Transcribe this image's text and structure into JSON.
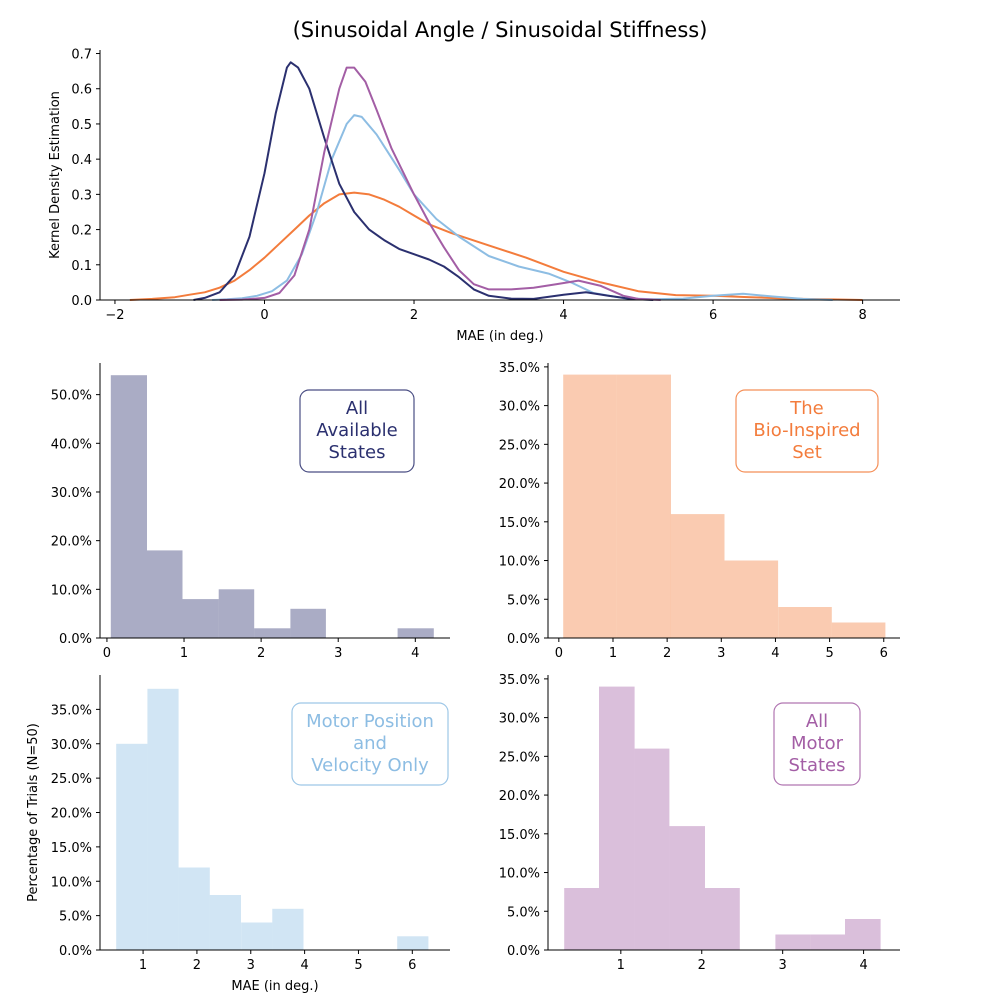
{
  "title": "(Sinusoidal Angle / Sinusoidal Stiffness)",
  "colors": {
    "all_states": "#2b306f",
    "bio_inspired": "#f37c3c",
    "motor_pos_vel": "#8dbde3",
    "all_motor": "#a35ea5"
  },
  "chart_data": [
    {
      "id": "kde",
      "type": "line",
      "title": "(Sinusoidal Angle / Sinusoidal Stiffness)",
      "xlabel": "MAE (in deg.)",
      "ylabel": "Kernel Density Estimation",
      "xlim": [
        -2.2,
        8.5
      ],
      "ylim": [
        0,
        0.71
      ],
      "xticks": [
        -2,
        0,
        2,
        4,
        6,
        8
      ],
      "yticks": [
        0.0,
        0.1,
        0.2,
        0.3,
        0.4,
        0.5,
        0.6,
        0.7
      ],
      "grid": false,
      "series": [
        {
          "color_key": "bio_inspired",
          "points": [
            [
              -1.8,
              0.0
            ],
            [
              -1.5,
              0.003
            ],
            [
              -1.2,
              0.008
            ],
            [
              -1.0,
              0.015
            ],
            [
              -0.8,
              0.022
            ],
            [
              -0.6,
              0.035
            ],
            [
              -0.4,
              0.055
            ],
            [
              -0.2,
              0.085
            ],
            [
              0.0,
              0.12
            ],
            [
              0.2,
              0.16
            ],
            [
              0.4,
              0.2
            ],
            [
              0.6,
              0.24
            ],
            [
              0.8,
              0.275
            ],
            [
              1.0,
              0.3
            ],
            [
              1.2,
              0.305
            ],
            [
              1.4,
              0.3
            ],
            [
              1.6,
              0.285
            ],
            [
              1.8,
              0.265
            ],
            [
              2.0,
              0.24
            ],
            [
              2.2,
              0.215
            ],
            [
              2.5,
              0.19
            ],
            [
              3.0,
              0.155
            ],
            [
              3.5,
              0.12
            ],
            [
              4.0,
              0.08
            ],
            [
              4.5,
              0.05
            ],
            [
              5.0,
              0.025
            ],
            [
              5.5,
              0.014
            ],
            [
              6.0,
              0.012
            ],
            [
              6.5,
              0.008
            ],
            [
              7.0,
              0.004
            ],
            [
              7.5,
              0.002
            ],
            [
              8.0,
              0.0
            ]
          ]
        },
        {
          "color_key": "motor_pos_vel",
          "points": [
            [
              -0.7,
              0.0
            ],
            [
              -0.5,
              0.002
            ],
            [
              -0.3,
              0.005
            ],
            [
              -0.1,
              0.012
            ],
            [
              0.1,
              0.025
            ],
            [
              0.3,
              0.055
            ],
            [
              0.5,
              0.13
            ],
            [
              0.7,
              0.25
            ],
            [
              0.9,
              0.4
            ],
            [
              1.1,
              0.5
            ],
            [
              1.2,
              0.525
            ],
            [
              1.3,
              0.52
            ],
            [
              1.5,
              0.47
            ],
            [
              1.8,
              0.37
            ],
            [
              2.0,
              0.3
            ],
            [
              2.3,
              0.23
            ],
            [
              2.6,
              0.18
            ],
            [
              3.0,
              0.125
            ],
            [
              3.4,
              0.095
            ],
            [
              3.8,
              0.075
            ],
            [
              4.1,
              0.05
            ],
            [
              4.4,
              0.02
            ],
            [
              4.8,
              0.005
            ],
            [
              5.2,
              0.002
            ],
            [
              5.6,
              0.004
            ],
            [
              6.0,
              0.012
            ],
            [
              6.4,
              0.018
            ],
            [
              6.8,
              0.01
            ],
            [
              7.2,
              0.003
            ],
            [
              7.6,
              0.0
            ]
          ]
        },
        {
          "color_key": "all_states",
          "points": [
            [
              -0.95,
              0.0
            ],
            [
              -0.8,
              0.006
            ],
            [
              -0.6,
              0.022
            ],
            [
              -0.4,
              0.07
            ],
            [
              -0.2,
              0.18
            ],
            [
              0.0,
              0.36
            ],
            [
              0.15,
              0.53
            ],
            [
              0.3,
              0.66
            ],
            [
              0.35,
              0.675
            ],
            [
              0.45,
              0.66
            ],
            [
              0.6,
              0.6
            ],
            [
              0.8,
              0.46
            ],
            [
              1.0,
              0.33
            ],
            [
              1.2,
              0.25
            ],
            [
              1.4,
              0.2
            ],
            [
              1.6,
              0.17
            ],
            [
              1.8,
              0.145
            ],
            [
              2.0,
              0.13
            ],
            [
              2.2,
              0.115
            ],
            [
              2.4,
              0.095
            ],
            [
              2.6,
              0.065
            ],
            [
              2.8,
              0.03
            ],
            [
              3.0,
              0.012
            ],
            [
              3.3,
              0.004
            ],
            [
              3.6,
              0.003
            ],
            [
              4.0,
              0.015
            ],
            [
              4.3,
              0.022
            ],
            [
              4.6,
              0.012
            ],
            [
              4.9,
              0.003
            ],
            [
              5.2,
              0.0
            ]
          ]
        },
        {
          "color_key": "all_motor",
          "points": [
            [
              -0.6,
              0.0
            ],
            [
              -0.3,
              0.001
            ],
            [
              0.0,
              0.006
            ],
            [
              0.2,
              0.02
            ],
            [
              0.4,
              0.07
            ],
            [
              0.6,
              0.2
            ],
            [
              0.8,
              0.42
            ],
            [
              1.0,
              0.6
            ],
            [
              1.1,
              0.66
            ],
            [
              1.2,
              0.66
            ],
            [
              1.35,
              0.62
            ],
            [
              1.5,
              0.54
            ],
            [
              1.7,
              0.43
            ],
            [
              2.0,
              0.3
            ],
            [
              2.2,
              0.22
            ],
            [
              2.4,
              0.15
            ],
            [
              2.6,
              0.085
            ],
            [
              2.8,
              0.045
            ],
            [
              3.0,
              0.03
            ],
            [
              3.3,
              0.03
            ],
            [
              3.6,
              0.035
            ],
            [
              3.9,
              0.045
            ],
            [
              4.2,
              0.055
            ],
            [
              4.5,
              0.04
            ],
            [
              4.8,
              0.012
            ],
            [
              5.0,
              0.003
            ],
            [
              5.3,
              0.0
            ]
          ]
        }
      ]
    },
    {
      "id": "hist-all-states",
      "type": "bar",
      "color_key": "all_states",
      "label": "All\nAvailable\nStates",
      "ylabel": "",
      "xlabel": "",
      "xlim": [
        -0.09,
        4.45
      ],
      "ylim": [
        0,
        0.565
      ],
      "xticks": [
        0,
        1,
        2,
        3,
        4
      ],
      "yticks": [
        0,
        0.1,
        0.2,
        0.3,
        0.4,
        0.5
      ],
      "bin_edges": [
        0.05,
        0.52,
        0.98,
        1.45,
        1.91,
        2.38,
        2.84,
        3.31,
        3.77,
        4.24
      ],
      "values": [
        0.54,
        0.18,
        0.08,
        0.1,
        0.02,
        0.06,
        0.0,
        0.0,
        0.02
      ]
    },
    {
      "id": "hist-bio-inspired",
      "type": "bar",
      "color_key": "bio_inspired",
      "label": "The\nBio-Inspired\nSet",
      "ylabel": "",
      "xlabel": "",
      "xlim": [
        -0.2,
        6.3
      ],
      "ylim": [
        0,
        0.355
      ],
      "xticks": [
        0,
        1,
        2,
        3,
        4,
        5,
        6
      ],
      "yticks": [
        0,
        0.05,
        0.1,
        0.15,
        0.2,
        0.25,
        0.3,
        0.35
      ],
      "bin_edges": [
        0.08,
        1.07,
        2.07,
        3.06,
        4.05,
        5.04,
        6.03
      ],
      "values": [
        0.34,
        0.34,
        0.16,
        0.1,
        0.04,
        0.02
      ]
    },
    {
      "id": "hist-motor-pos-vel",
      "type": "bar",
      "color_key": "motor_pos_vel",
      "label": "Motor Position\nand\nVelocity Only",
      "ylabel": "Percentage of Trials (N=50)",
      "xlabel": "MAE (in deg.)",
      "xlim": [
        0.2,
        6.7
      ],
      "ylim": [
        0,
        0.4
      ],
      "xticks": [
        1,
        2,
        3,
        4,
        5,
        6
      ],
      "yticks": [
        0,
        0.05,
        0.1,
        0.15,
        0.2,
        0.25,
        0.3,
        0.35
      ],
      "bin_edges": [
        0.5,
        1.08,
        1.66,
        2.24,
        2.82,
        3.4,
        3.98,
        4.56,
        5.14,
        5.72,
        6.3
      ],
      "values": [
        0.3,
        0.38,
        0.12,
        0.08,
        0.04,
        0.06,
        0.0,
        0.0,
        0.0,
        0.02
      ]
    },
    {
      "id": "hist-all-motor",
      "type": "bar",
      "color_key": "all_motor",
      "label": "All\nMotor\nStates",
      "ylabel": "",
      "xlabel": "",
      "xlim": [
        0.1,
        4.45
      ],
      "ylim": [
        0,
        0.355
      ],
      "xticks": [
        1,
        2,
        3,
        4
      ],
      "yticks": [
        0,
        0.05,
        0.1,
        0.15,
        0.2,
        0.25,
        0.3,
        0.35
      ],
      "bin_edges": [
        0.3,
        0.73,
        1.17,
        1.6,
        2.04,
        2.47,
        2.91,
        3.34,
        3.77,
        4.21
      ],
      "values": [
        0.08,
        0.34,
        0.26,
        0.16,
        0.08,
        0.0,
        0.02,
        0.02,
        0.04
      ]
    }
  ]
}
